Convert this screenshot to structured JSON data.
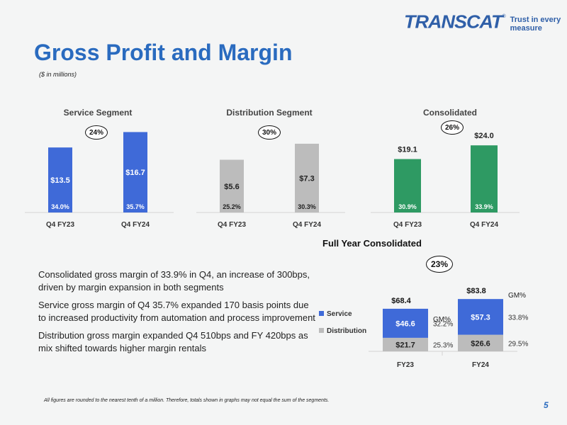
{
  "header": {
    "logo_text": "TRANSCAT",
    "logo_sup": "®",
    "tagline": "Trust in every measure",
    "title": "Gross Profit and Margin",
    "subtitle": "($ in millions)"
  },
  "colors": {
    "service": "#3f6ad8",
    "distribution": "#bcbcbc",
    "consolidated": "#2e9a63",
    "title": "#2a6bbf",
    "axis": "#d4d4d4"
  },
  "growth": {
    "service": "24%",
    "distribution": "30%",
    "consolidated": "26%",
    "full_year": "23%"
  },
  "chart_data": [
    {
      "id": "service",
      "type": "bar",
      "title": "Service Segment",
      "categories": [
        "Q4 FY23",
        "Q4 FY24"
      ],
      "values": [
        13.5,
        16.7
      ],
      "value_labels": [
        "$13.5",
        "$16.7"
      ],
      "margin_labels": [
        "34.0%",
        "35.7%"
      ]
    },
    {
      "id": "distribution",
      "type": "bar",
      "title": "Distribution Segment",
      "categories": [
        "Q4 FY23",
        "Q4 FY24"
      ],
      "values": [
        5.6,
        7.3
      ],
      "value_labels": [
        "$5.6",
        "$7.3"
      ],
      "margin_labels": [
        "25.2%",
        "30.3%"
      ]
    },
    {
      "id": "consolidated",
      "type": "bar",
      "title": "Consolidated",
      "categories": [
        "Q4 FY23",
        "Q4 FY24"
      ],
      "values": [
        19.1,
        24.0
      ],
      "value_labels": [
        "$19.1",
        "$24.0"
      ],
      "margin_labels": [
        "30.9%",
        "33.9%"
      ]
    },
    {
      "id": "full_year",
      "type": "bar",
      "stacked": true,
      "title": "Full Year Consolidated",
      "categories": [
        "FY23",
        "FY24"
      ],
      "series": [
        {
          "name": "Service",
          "values": [
            46.6,
            57.3
          ],
          "value_labels": [
            "$46.6",
            "$57.3"
          ],
          "margin_labels": [
            "32.2%",
            "33.8%"
          ]
        },
        {
          "name": "Distribution",
          "values": [
            21.7,
            26.6
          ],
          "value_labels": [
            "$21.7",
            "$26.6"
          ],
          "margin_labels": [
            "25.3%",
            "29.5%"
          ]
        }
      ],
      "totals": [
        68.4,
        83.8
      ],
      "total_labels": [
        "$68.4",
        "$83.8"
      ],
      "gm_label": "GM%",
      "legend_position": "left"
    }
  ],
  "bullets": [
    "Consolidated gross margin of 33.9% in Q4, an increase of 300bps, driven by margin expansion in both segments",
    "Service gross margin of Q4 35.7% expanded 170 basis points due to increased productivity from automation and process improvement",
    "Distribution gross margin expanded Q4 510bps and FY 420bps as mix shifted towards higher margin rentals"
  ],
  "footnote": "All figures are rounded to the nearest tenth of a million. Therefore, totals shown in graphs may not equal the sum of the segments.",
  "page_number": "5"
}
